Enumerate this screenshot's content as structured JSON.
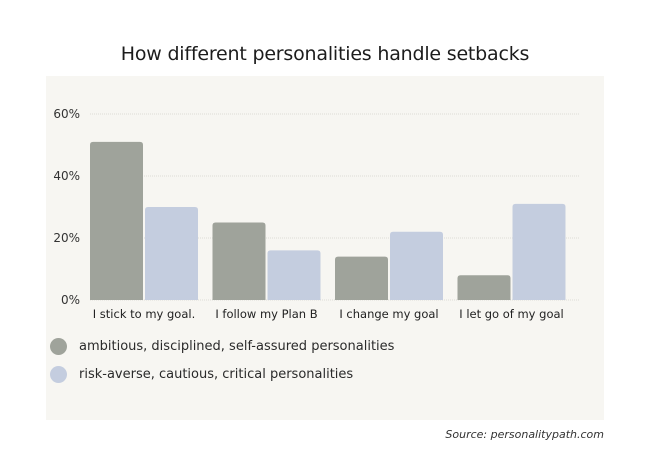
{
  "chart_data": {
    "type": "bar",
    "title": "How different personalities handle setbacks",
    "xlabel": "",
    "ylabel": "",
    "ylim": [
      0,
      60
    ],
    "yticks": [
      "0%",
      "20%",
      "40%",
      "60%"
    ],
    "ytick_values": [
      0,
      20,
      40,
      60
    ],
    "grid": true,
    "legend_position": "bottom-left",
    "categories": [
      "I stick to my goal.",
      "I follow my Plan B",
      "I change my goal",
      "I let go of my goal"
    ],
    "series": [
      {
        "name": "ambitious, disciplined, self-assured personalities",
        "color": "#9fa39b",
        "values": [
          51,
          25,
          14,
          8
        ]
      },
      {
        "name": "risk-averse, cautious, critical personalities",
        "color": "#c4cddf",
        "values": [
          30,
          16,
          22,
          31
        ]
      }
    ],
    "source": "Source: personalitypath.com"
  }
}
